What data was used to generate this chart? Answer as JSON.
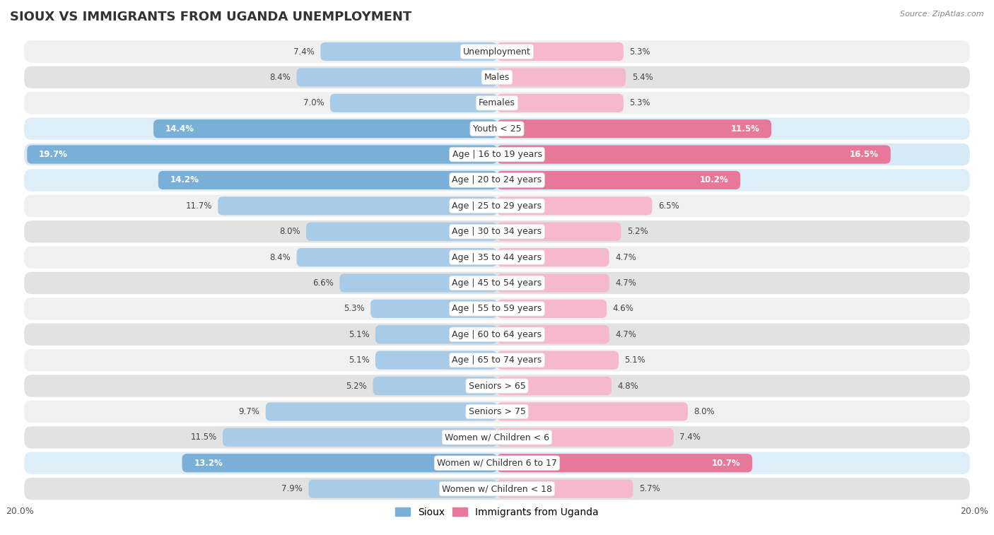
{
  "title": "SIOUX VS IMMIGRANTS FROM UGANDA UNEMPLOYMENT",
  "source": "Source: ZipAtlas.com",
  "categories": [
    "Unemployment",
    "Males",
    "Females",
    "Youth < 25",
    "Age | 16 to 19 years",
    "Age | 20 to 24 years",
    "Age | 25 to 29 years",
    "Age | 30 to 34 years",
    "Age | 35 to 44 years",
    "Age | 45 to 54 years",
    "Age | 55 to 59 years",
    "Age | 60 to 64 years",
    "Age | 65 to 74 years",
    "Seniors > 65",
    "Seniors > 75",
    "Women w/ Children < 6",
    "Women w/ Children 6 to 17",
    "Women w/ Children < 18"
  ],
  "sioux_values": [
    7.4,
    8.4,
    7.0,
    14.4,
    19.7,
    14.2,
    11.7,
    8.0,
    8.4,
    6.6,
    5.3,
    5.1,
    5.1,
    5.2,
    9.7,
    11.5,
    13.2,
    7.9
  ],
  "uganda_values": [
    5.3,
    5.4,
    5.3,
    11.5,
    16.5,
    10.2,
    6.5,
    5.2,
    4.7,
    4.7,
    4.6,
    4.7,
    5.1,
    4.8,
    8.0,
    7.4,
    10.7,
    5.7
  ],
  "sioux_color_normal": "#a8cce8",
  "sioux_color_highlight": "#7ab0d8",
  "uganda_color_normal": "#f5b8cc",
  "uganda_color_highlight": "#e8789a",
  "highlight_rows": [
    3,
    4,
    5,
    16
  ],
  "xlim": 20.0,
  "row_bg_light": "#f0f0f0",
  "row_bg_dark": "#e2e2e2",
  "row_bg_highlight_blue": "#d0e8f5",
  "row_bg_highlight_pink": "#fce0eb",
  "label_fontsize": 9.0,
  "title_fontsize": 13,
  "value_fontsize": 8.5
}
